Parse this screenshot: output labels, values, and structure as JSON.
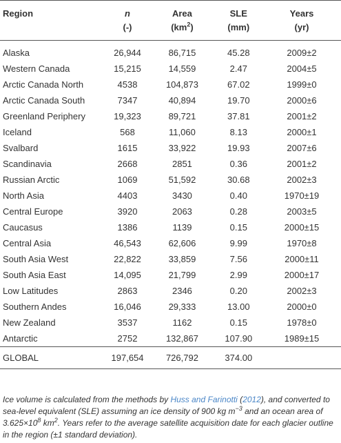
{
  "header": {
    "region": "Region",
    "n": "n",
    "n_unit": "(-)",
    "area": "Area",
    "area_unit_prefix": "(km",
    "area_unit_sup": "2",
    "area_unit_suffix": ")",
    "sle": "SLE",
    "sle_unit": "(mm)",
    "years": "Years",
    "years_unit": "(yr)"
  },
  "rows": [
    {
      "region": "Alaska",
      "n": "26,944",
      "area": "86,715",
      "sle": "45.28",
      "years": "2009±2"
    },
    {
      "region": "Western Canada",
      "n": "15,215",
      "area": "14,559",
      "sle": "2.47",
      "years": "2004±5"
    },
    {
      "region": "Arctic Canada North",
      "n": "4538",
      "area": "104,873",
      "sle": "67.02",
      "years": "1999±0"
    },
    {
      "region": "Arctic Canada South",
      "n": "7347",
      "area": "40,894",
      "sle": "19.70",
      "years": "2000±6"
    },
    {
      "region": "Greenland Periphery",
      "n": "19,323",
      "area": "89,721",
      "sle": "37.81",
      "years": "2001±2"
    },
    {
      "region": "Iceland",
      "n": "568",
      "area": "11,060",
      "sle": "8.13",
      "years": "2000±1"
    },
    {
      "region": "Svalbard",
      "n": "1615",
      "area": "33,922",
      "sle": "19.93",
      "years": "2007±6"
    },
    {
      "region": "Scandinavia",
      "n": "2668",
      "area": "2851",
      "sle": "0.36",
      "years": "2001±2"
    },
    {
      "region": "Russian Arctic",
      "n": "1069",
      "area": "51,592",
      "sle": "30.68",
      "years": "2002±3"
    },
    {
      "region": "North Asia",
      "n": "4403",
      "area": "3430",
      "sle": "0.40",
      "years": "1970±19"
    },
    {
      "region": "Central Europe",
      "n": "3920",
      "area": "2063",
      "sle": "0.28",
      "years": "2003±5"
    },
    {
      "region": "Caucasus",
      "n": "1386",
      "area": "1139",
      "sle": "0.15",
      "years": "2000±15"
    },
    {
      "region": "Central Asia",
      "n": "46,543",
      "area": "62,606",
      "sle": "9.99",
      "years": "1970±8"
    },
    {
      "region": "South Asia West",
      "n": "22,822",
      "area": "33,859",
      "sle": "7.56",
      "years": "2000±11"
    },
    {
      "region": "South Asia East",
      "n": "14,095",
      "area": "21,799",
      "sle": "2.99",
      "years": "2000±17"
    },
    {
      "region": "Low Latitudes",
      "n": "2863",
      "area": "2346",
      "sle": "0.20",
      "years": "2002±3"
    },
    {
      "region": "Southern Andes",
      "n": "16,046",
      "area": "29,333",
      "sle": "13.00",
      "years": "2000±0"
    },
    {
      "region": "New Zealand",
      "n": "3537",
      "area": "1162",
      "sle": "0.15",
      "years": "1978±0"
    },
    {
      "region": "Antarctic",
      "n": "2752",
      "area": "132,867",
      "sle": "107.90",
      "years": "1989±15"
    }
  ],
  "global": {
    "region": "GLOBAL",
    "n": "197,654",
    "area": "726,792",
    "sle": "374.00",
    "years": ""
  },
  "caption": {
    "part1": "Ice volume is calculated from the methods by ",
    "link": "Huss and Farinotti",
    "part2": " (",
    "year_link": "2012",
    "part3": "), and converted to sea-level equivalent (SLE) assuming an ice density of 900 kg m",
    "sup1": "−3",
    "part4": " and an ocean area of 3.625×10",
    "sup2": "8",
    "part5": " km",
    "sup3": "2",
    "part6": ". Years refer to the average satellite acquisition date for each glacier outline in the region (±1 standard deviation)."
  },
  "colors": {
    "text": "#333333",
    "link": "#4a86c7",
    "rule": "#555555"
  }
}
